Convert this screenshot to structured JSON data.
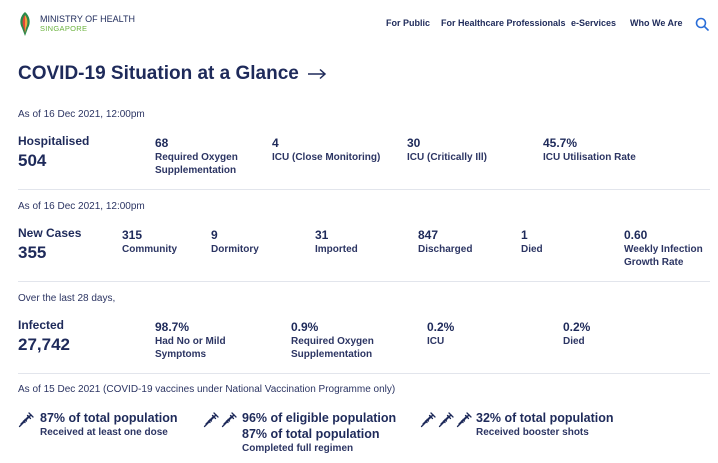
{
  "brand": {
    "line1": "MINISTRY OF HEALTH",
    "line2": "SINGAPORE"
  },
  "nav": [
    "For Public",
    "For Healthcare Professionals",
    "e-Services",
    "Who We Are"
  ],
  "page_title": "COVID-19 Situation at a Glance",
  "hospital": {
    "asof": "As of 16 Dec 2021, 12:00pm",
    "label": "Hospitalised",
    "value": "504",
    "stats": [
      {
        "value": "68",
        "label": "Required Oxygen Supplementation"
      },
      {
        "value": "4",
        "label": "ICU (Close Monitoring)"
      },
      {
        "value": "30",
        "label": "ICU (Critically Ill)"
      },
      {
        "value": "45.7%",
        "label": "ICU Utilisation Rate"
      }
    ]
  },
  "cases": {
    "asof": "As of 16 Dec 2021, 12:00pm",
    "label": "New Cases",
    "value": "355",
    "stats": [
      {
        "value": "315",
        "label": "Community"
      },
      {
        "value": "9",
        "label": "Dormitory"
      },
      {
        "value": "31",
        "label": "Imported"
      },
      {
        "value": "847",
        "label": "Discharged"
      },
      {
        "value": "1",
        "label": "Died"
      },
      {
        "value": "0.60",
        "label": "Weekly Infection Growth Rate"
      }
    ]
  },
  "infected": {
    "asof": "Over the last 28 days,",
    "label": "Infected",
    "value": "27,742",
    "stats": [
      {
        "value": "98.7%",
        "label": "Had No or Mild Symptoms"
      },
      {
        "value": "0.9%",
        "label": "Required Oxygen Supplementation"
      },
      {
        "value": "0.2%",
        "label": "ICU"
      },
      {
        "value": "0.2%",
        "label": "Died"
      }
    ]
  },
  "vaccination": {
    "asof": "As of 15 Dec 2021 (COVID-19 vaccines under National Vaccination Programme only)",
    "items": [
      {
        "icon": "syringe-icon",
        "doses": 1,
        "lines": [
          "87% of total population"
        ],
        "sub": "Received at least one dose"
      },
      {
        "icon": "syringe-icon",
        "doses": 2,
        "lines": [
          "96% of eligible population",
          "87% of total population"
        ],
        "sub": "Completed full regimen"
      },
      {
        "icon": "syringe-icon",
        "doses": 3,
        "lines": [
          "32% of total population"
        ],
        "sub": "Received booster shots"
      }
    ]
  },
  "colors": {
    "navy": "#1e2a5a",
    "green": "#6cb33f",
    "search": "#2b6ed8",
    "divider": "#e2e5ec"
  }
}
